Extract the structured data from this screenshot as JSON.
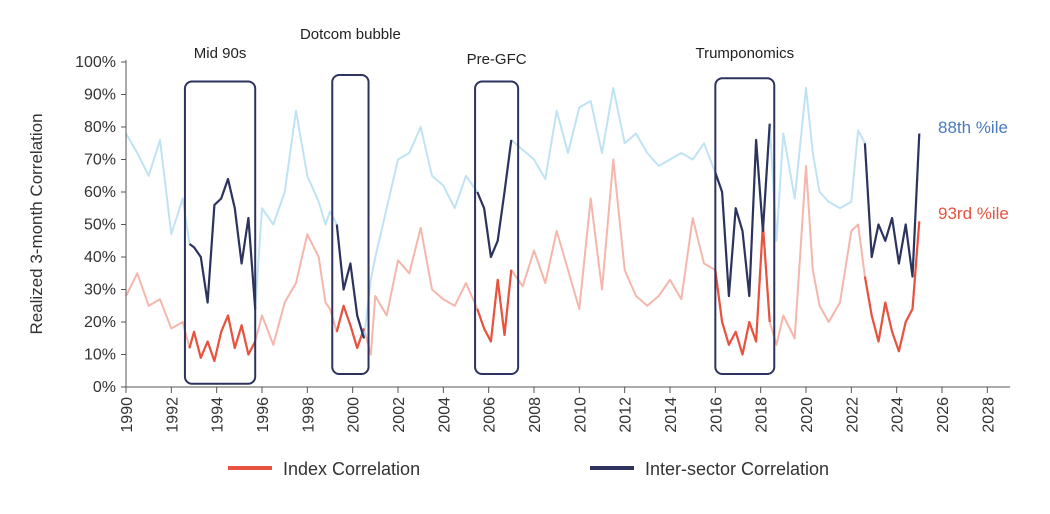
{
  "chart_data": {
    "type": "line",
    "title": "",
    "ylabel": "Realized 3-month Correlation",
    "xlabel": "",
    "xlim": [
      1990,
      2029
    ],
    "ylim": [
      0,
      1
    ],
    "y_ticks": [
      "0%",
      "10%",
      "20%",
      "30%",
      "40%",
      "50%",
      "60%",
      "70%",
      "80%",
      "90%",
      "100%"
    ],
    "x_ticks": [
      "1990",
      "1992",
      "1994",
      "1996",
      "1998",
      "2000",
      "2002",
      "2004",
      "2006",
      "2008",
      "2010",
      "2012",
      "2014",
      "2016",
      "2018",
      "2020",
      "2022",
      "2024",
      "2026",
      "2028"
    ],
    "colors": {
      "index": "#e8533f",
      "index_faded": "#f5b6ac",
      "sector": "#2e335e",
      "sector_faded": "#bfe3f3",
      "box": "#2e335e",
      "sector_pct_label": "#4a79c0",
      "index_pct_label": "#e8533f"
    },
    "series": [
      {
        "name": "Index Correlation",
        "x": [
          1990.0,
          1990.5,
          1991.0,
          1991.5,
          1992.0,
          1992.5,
          1992.8,
          1993.0,
          1993.3,
          1993.6,
          1993.9,
          1994.2,
          1994.5,
          1994.8,
          1995.1,
          1995.4,
          1995.7,
          1996.0,
          1996.5,
          1997.0,
          1997.5,
          1998.0,
          1998.5,
          1998.8,
          1999.0,
          1999.3,
          1999.6,
          1999.9,
          2000.2,
          2000.5,
          2000.8,
          2001.0,
          2001.5,
          2002.0,
          2002.5,
          2003.0,
          2003.5,
          2004.0,
          2004.5,
          2005.0,
          2005.5,
          2005.8,
          2006.1,
          2006.4,
          2006.7,
          2007.0,
          2007.5,
          2008.0,
          2008.5,
          2009.0,
          2009.5,
          2010.0,
          2010.5,
          2011.0,
          2011.5,
          2012.0,
          2012.5,
          2013.0,
          2013.5,
          2014.0,
          2014.5,
          2015.0,
          2015.5,
          2016.0,
          2016.3,
          2016.6,
          2016.9,
          2017.2,
          2017.5,
          2017.8,
          2018.1,
          2018.4,
          2018.7,
          2019.0,
          2019.5,
          2020.0,
          2020.3,
          2020.6,
          2021.0,
          2021.5,
          2022.0,
          2022.3,
          2022.6,
          2022.9,
          2023.2,
          2023.5,
          2023.8,
          2024.1,
          2024.4,
          2024.7,
          2025.0
        ],
        "values": [
          0.28,
          0.35,
          0.25,
          0.27,
          0.18,
          0.2,
          0.12,
          0.17,
          0.09,
          0.14,
          0.08,
          0.17,
          0.22,
          0.12,
          0.19,
          0.1,
          0.14,
          0.22,
          0.13,
          0.26,
          0.32,
          0.47,
          0.4,
          0.26,
          0.24,
          0.17,
          0.25,
          0.19,
          0.12,
          0.18,
          0.1,
          0.28,
          0.22,
          0.39,
          0.35,
          0.49,
          0.3,
          0.27,
          0.25,
          0.32,
          0.24,
          0.18,
          0.14,
          0.33,
          0.16,
          0.36,
          0.31,
          0.42,
          0.32,
          0.48,
          0.36,
          0.24,
          0.58,
          0.3,
          0.7,
          0.36,
          0.28,
          0.25,
          0.28,
          0.33,
          0.27,
          0.52,
          0.38,
          0.36,
          0.2,
          0.13,
          0.17,
          0.1,
          0.2,
          0.14,
          0.5,
          0.2,
          0.13,
          0.22,
          0.15,
          0.68,
          0.36,
          0.25,
          0.2,
          0.26,
          0.48,
          0.5,
          0.34,
          0.22,
          0.14,
          0.26,
          0.17,
          0.11,
          0.2,
          0.24,
          0.51
        ]
      },
      {
        "name": "Inter-sector Correlation",
        "x": [
          1990.0,
          1990.5,
          1991.0,
          1991.5,
          1992.0,
          1992.5,
          1992.8,
          1993.0,
          1993.3,
          1993.6,
          1993.9,
          1994.2,
          1994.5,
          1994.8,
          1995.1,
          1995.4,
          1995.7,
          1996.0,
          1996.5,
          1997.0,
          1997.5,
          1998.0,
          1998.5,
          1998.8,
          1999.0,
          1999.3,
          1999.6,
          1999.9,
          2000.2,
          2000.5,
          2000.8,
          2001.0,
          2001.5,
          2002.0,
          2002.5,
          2003.0,
          2003.5,
          2004.0,
          2004.5,
          2005.0,
          2005.5,
          2005.8,
          2006.1,
          2006.4,
          2006.7,
          2007.0,
          2007.5,
          2008.0,
          2008.5,
          2009.0,
          2009.5,
          2010.0,
          2010.5,
          2011.0,
          2011.5,
          2012.0,
          2012.5,
          2013.0,
          2013.5,
          2014.0,
          2014.5,
          2015.0,
          2015.5,
          2016.0,
          2016.3,
          2016.6,
          2016.9,
          2017.2,
          2017.5,
          2017.8,
          2018.1,
          2018.4,
          2018.7,
          2019.0,
          2019.5,
          2020.0,
          2020.3,
          2020.6,
          2021.0,
          2021.5,
          2022.0,
          2022.3,
          2022.6,
          2022.9,
          2023.2,
          2023.5,
          2023.8,
          2024.1,
          2024.4,
          2024.7,
          2025.0
        ],
        "values": [
          0.78,
          0.72,
          0.65,
          0.76,
          0.47,
          0.58,
          0.44,
          0.43,
          0.4,
          0.26,
          0.56,
          0.58,
          0.64,
          0.55,
          0.38,
          0.52,
          0.24,
          0.55,
          0.5,
          0.6,
          0.85,
          0.65,
          0.57,
          0.5,
          0.54,
          0.5,
          0.3,
          0.38,
          0.22,
          0.15,
          0.33,
          0.4,
          0.55,
          0.7,
          0.72,
          0.8,
          0.65,
          0.62,
          0.55,
          0.65,
          0.6,
          0.55,
          0.4,
          0.45,
          0.6,
          0.76,
          0.73,
          0.7,
          0.64,
          0.85,
          0.72,
          0.86,
          0.88,
          0.72,
          0.92,
          0.75,
          0.78,
          0.72,
          0.68,
          0.7,
          0.72,
          0.7,
          0.75,
          0.66,
          0.6,
          0.28,
          0.55,
          0.48,
          0.28,
          0.76,
          0.48,
          0.81,
          0.45,
          0.78,
          0.58,
          0.92,
          0.72,
          0.6,
          0.57,
          0.55,
          0.57,
          0.79,
          0.75,
          0.4,
          0.5,
          0.45,
          0.52,
          0.38,
          0.5,
          0.34,
          0.78
        ]
      }
    ],
    "highlight_boxes": [
      {
        "label": "Mid 90s",
        "start": 1992.6,
        "end": 1995.7,
        "ymin": 0.01,
        "ymax": 0.94
      },
      {
        "label": "Dotcom bubble",
        "start": 1999.1,
        "end": 2000.7,
        "ymin": 0.04,
        "ymax": 0.96
      },
      {
        "label": "Pre-GFC",
        "start": 2005.4,
        "end": 2007.3,
        "ymin": 0.04,
        "ymax": 0.94
      },
      {
        "label": "Trumponomics",
        "start": 2016.0,
        "end": 2018.6,
        "ymin": 0.04,
        "ymax": 0.95
      }
    ],
    "annotations": [
      {
        "text": "88th %ile",
        "series": "Inter-sector Correlation"
      },
      {
        "text": "93rd %ile",
        "series": "Index Correlation"
      }
    ],
    "legend": [
      "Index Correlation",
      "Inter-sector Correlation"
    ],
    "legend_position": "bottom"
  }
}
